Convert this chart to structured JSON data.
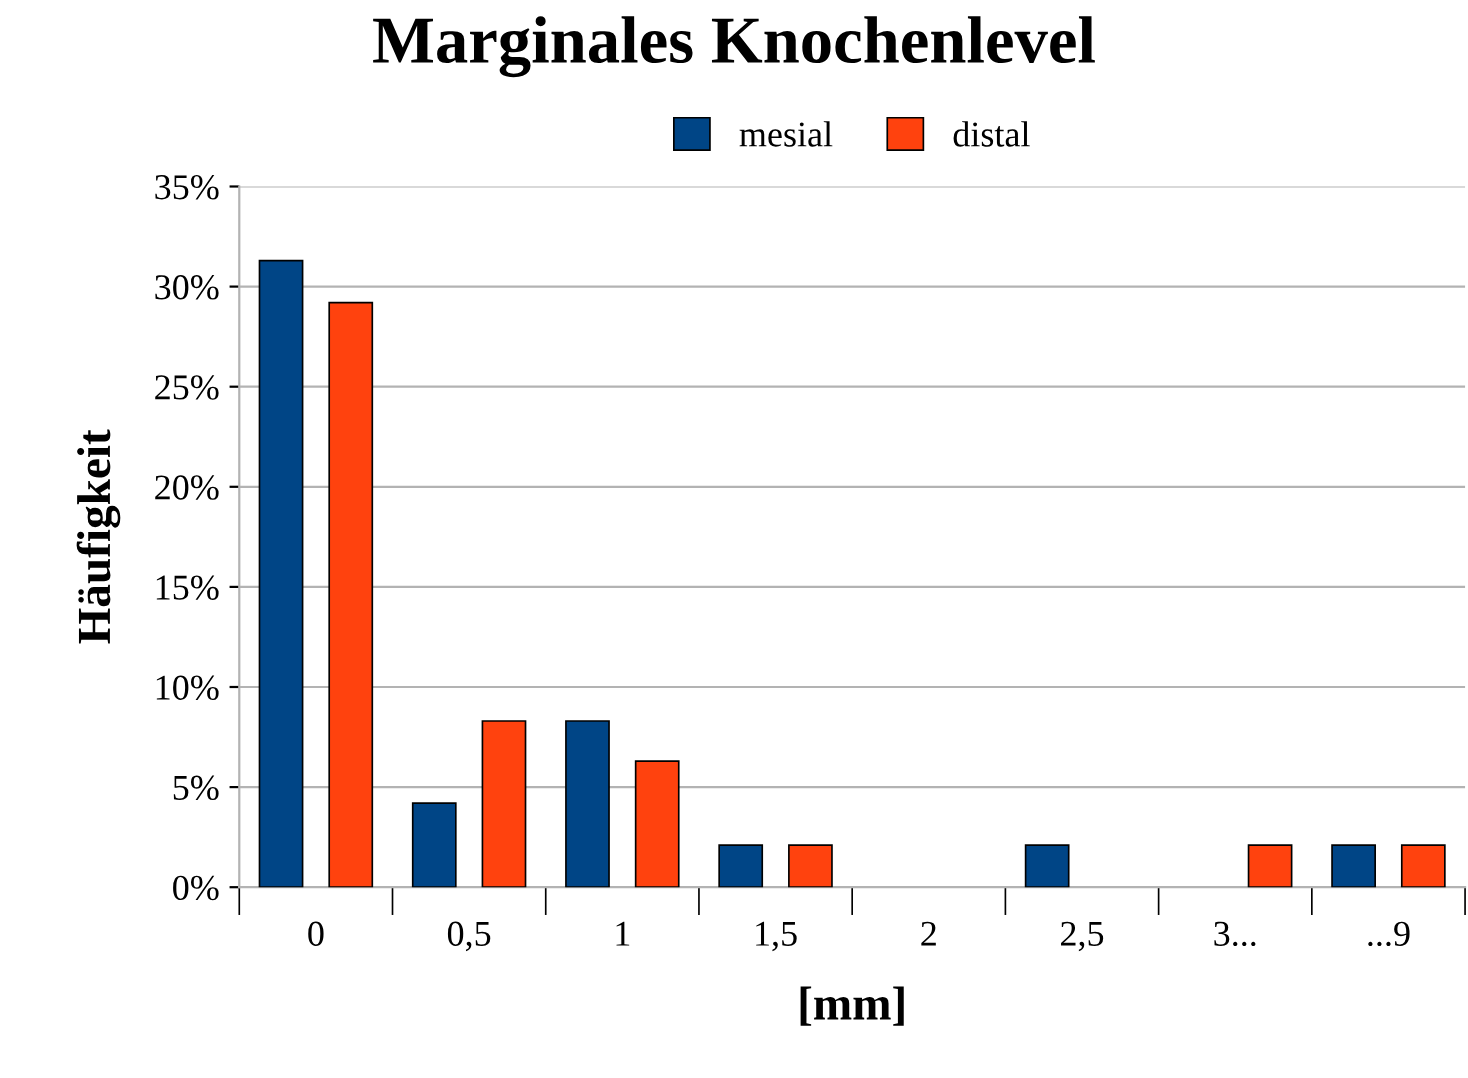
{
  "chart_data": {
    "type": "bar",
    "title": "Marginales Knochenlevel",
    "xlabel": "[mm]",
    "ylabel": "Häufigkeit",
    "categories": [
      "0",
      "0,5",
      "1",
      "1,5",
      "2",
      "2,5",
      "3...",
      "...9"
    ],
    "series": [
      {
        "name": "mesial",
        "color": "#004586",
        "values": [
          31.3,
          4.2,
          8.3,
          2.1,
          0,
          2.1,
          0,
          2.1
        ]
      },
      {
        "name": "distal",
        "color": "#ff420e",
        "values": [
          29.2,
          8.3,
          6.3,
          2.1,
          0,
          0,
          2.1,
          2.1
        ]
      }
    ],
    "ylim": [
      0,
      35
    ],
    "yticks": [
      {
        "value": 0,
        "label": "0%"
      },
      {
        "value": 5,
        "label": "5%"
      },
      {
        "value": 10,
        "label": "10%"
      },
      {
        "value": 15,
        "label": "15%"
      },
      {
        "value": 20,
        "label": "20%"
      },
      {
        "value": 25,
        "label": "25%"
      },
      {
        "value": 30,
        "label": "30%"
      },
      {
        "value": 35,
        "label": "35%"
      }
    ],
    "grid": "y",
    "legend": "top"
  }
}
